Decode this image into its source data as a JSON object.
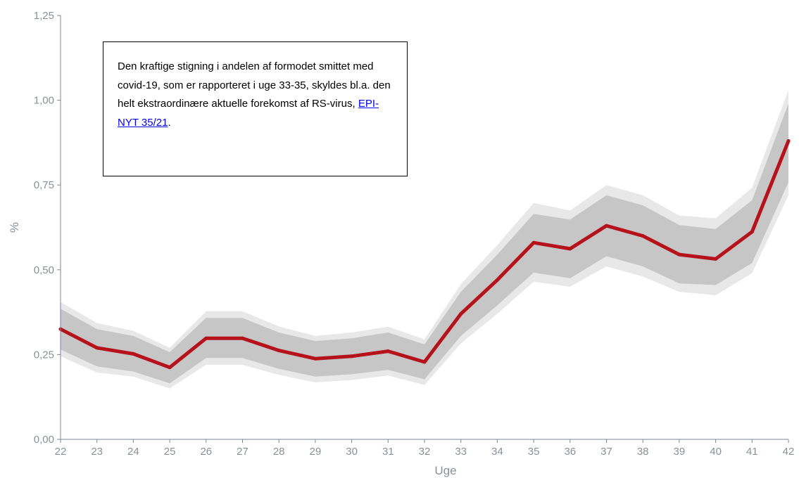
{
  "chart_data": {
    "type": "line",
    "ylabel": "%",
    "xlabel": "Uge",
    "categories": [
      "22",
      "23",
      "24",
      "25",
      "26",
      "27",
      "28",
      "29",
      "30",
      "31",
      "32",
      "33",
      "34",
      "35",
      "36",
      "37",
      "38",
      "39",
      "40",
      "41",
      "42"
    ],
    "ylim": [
      0,
      1.25
    ],
    "yticks": [
      0,
      0.25,
      0.5,
      0.75,
      1.0,
      1.25
    ],
    "ytick_labels": [
      "0,00",
      "0,25",
      "0,50",
      "0,75",
      "1,00",
      "1,25"
    ],
    "series": [
      {
        "values": [
          0.325,
          0.27,
          0.252,
          0.212,
          0.298,
          0.298,
          0.262,
          0.238,
          0.245,
          0.26,
          0.228,
          0.37,
          0.47,
          0.58,
          0.562,
          0.63,
          0.6,
          0.545,
          0.532,
          0.612,
          0.88
        ]
      }
    ],
    "bands": [
      {
        "level": "outer",
        "lower": [
          0.245,
          0.197,
          0.185,
          0.15,
          0.22,
          0.22,
          0.19,
          0.168,
          0.175,
          0.188,
          0.16,
          0.283,
          0.37,
          0.465,
          0.45,
          0.51,
          0.48,
          0.435,
          0.425,
          0.49,
          0.72
        ],
        "upper": [
          0.405,
          0.343,
          0.32,
          0.27,
          0.378,
          0.378,
          0.333,
          0.305,
          0.315,
          0.332,
          0.295,
          0.458,
          0.573,
          0.697,
          0.675,
          0.75,
          0.72,
          0.66,
          0.652,
          0.742,
          1.03
        ]
      },
      {
        "level": "inner",
        "lower": [
          0.265,
          0.215,
          0.2,
          0.165,
          0.24,
          0.24,
          0.208,
          0.185,
          0.192,
          0.205,
          0.177,
          0.305,
          0.395,
          0.492,
          0.475,
          0.54,
          0.51,
          0.46,
          0.455,
          0.52,
          0.758
        ],
        "upper": [
          0.385,
          0.325,
          0.305,
          0.257,
          0.358,
          0.358,
          0.315,
          0.29,
          0.298,
          0.315,
          0.28,
          0.435,
          0.545,
          0.665,
          0.648,
          0.72,
          0.69,
          0.632,
          0.62,
          0.705,
          0.99
        ]
      }
    ],
    "grid": false,
    "colors": {
      "line": "#b5121b",
      "outer_band": "#e8e8e8",
      "inner_band": "#c6c6c6",
      "axis": "#7f8694",
      "tick_text": "#8a8f99"
    }
  },
  "annotation": {
    "text": "Den kraftige stigning i andelen af formodet smittet med covid-19, som er rapporteret i uge 33-35, skyldes bl.a. den helt ekstraordinære aktuelle forekomst af RS-virus, ",
    "link_text": "EPI-NYT 35/21",
    "after_link": "."
  }
}
